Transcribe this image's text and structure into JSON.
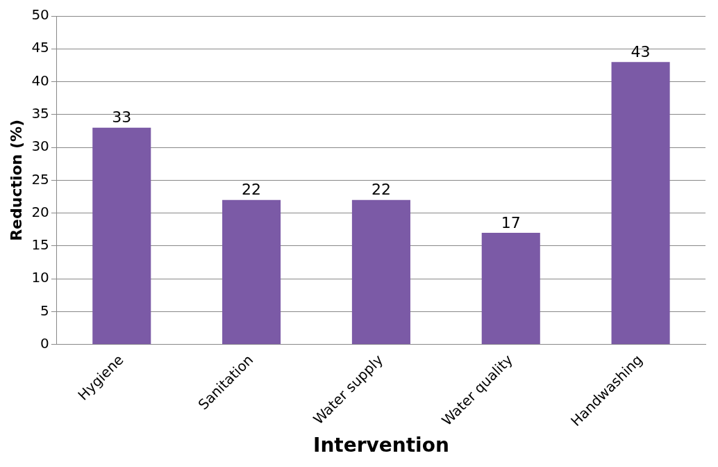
{
  "chart_data": {
    "type": "bar",
    "xlabel": "Intervention",
    "ylabel": "Reduction (%)",
    "categories": [
      "Hygiene",
      "Sanitation",
      "Water supply",
      "Water quality",
      "Handwashing"
    ],
    "values": [
      33,
      22,
      22,
      17,
      43
    ],
    "color": "#7b5aa6",
    "ylim": [
      0,
      50
    ],
    "yticks": [
      0,
      5,
      10,
      15,
      20,
      25,
      30,
      35,
      40,
      45,
      50
    ],
    "grid": "y",
    "data_labels": true,
    "legend": false
  }
}
